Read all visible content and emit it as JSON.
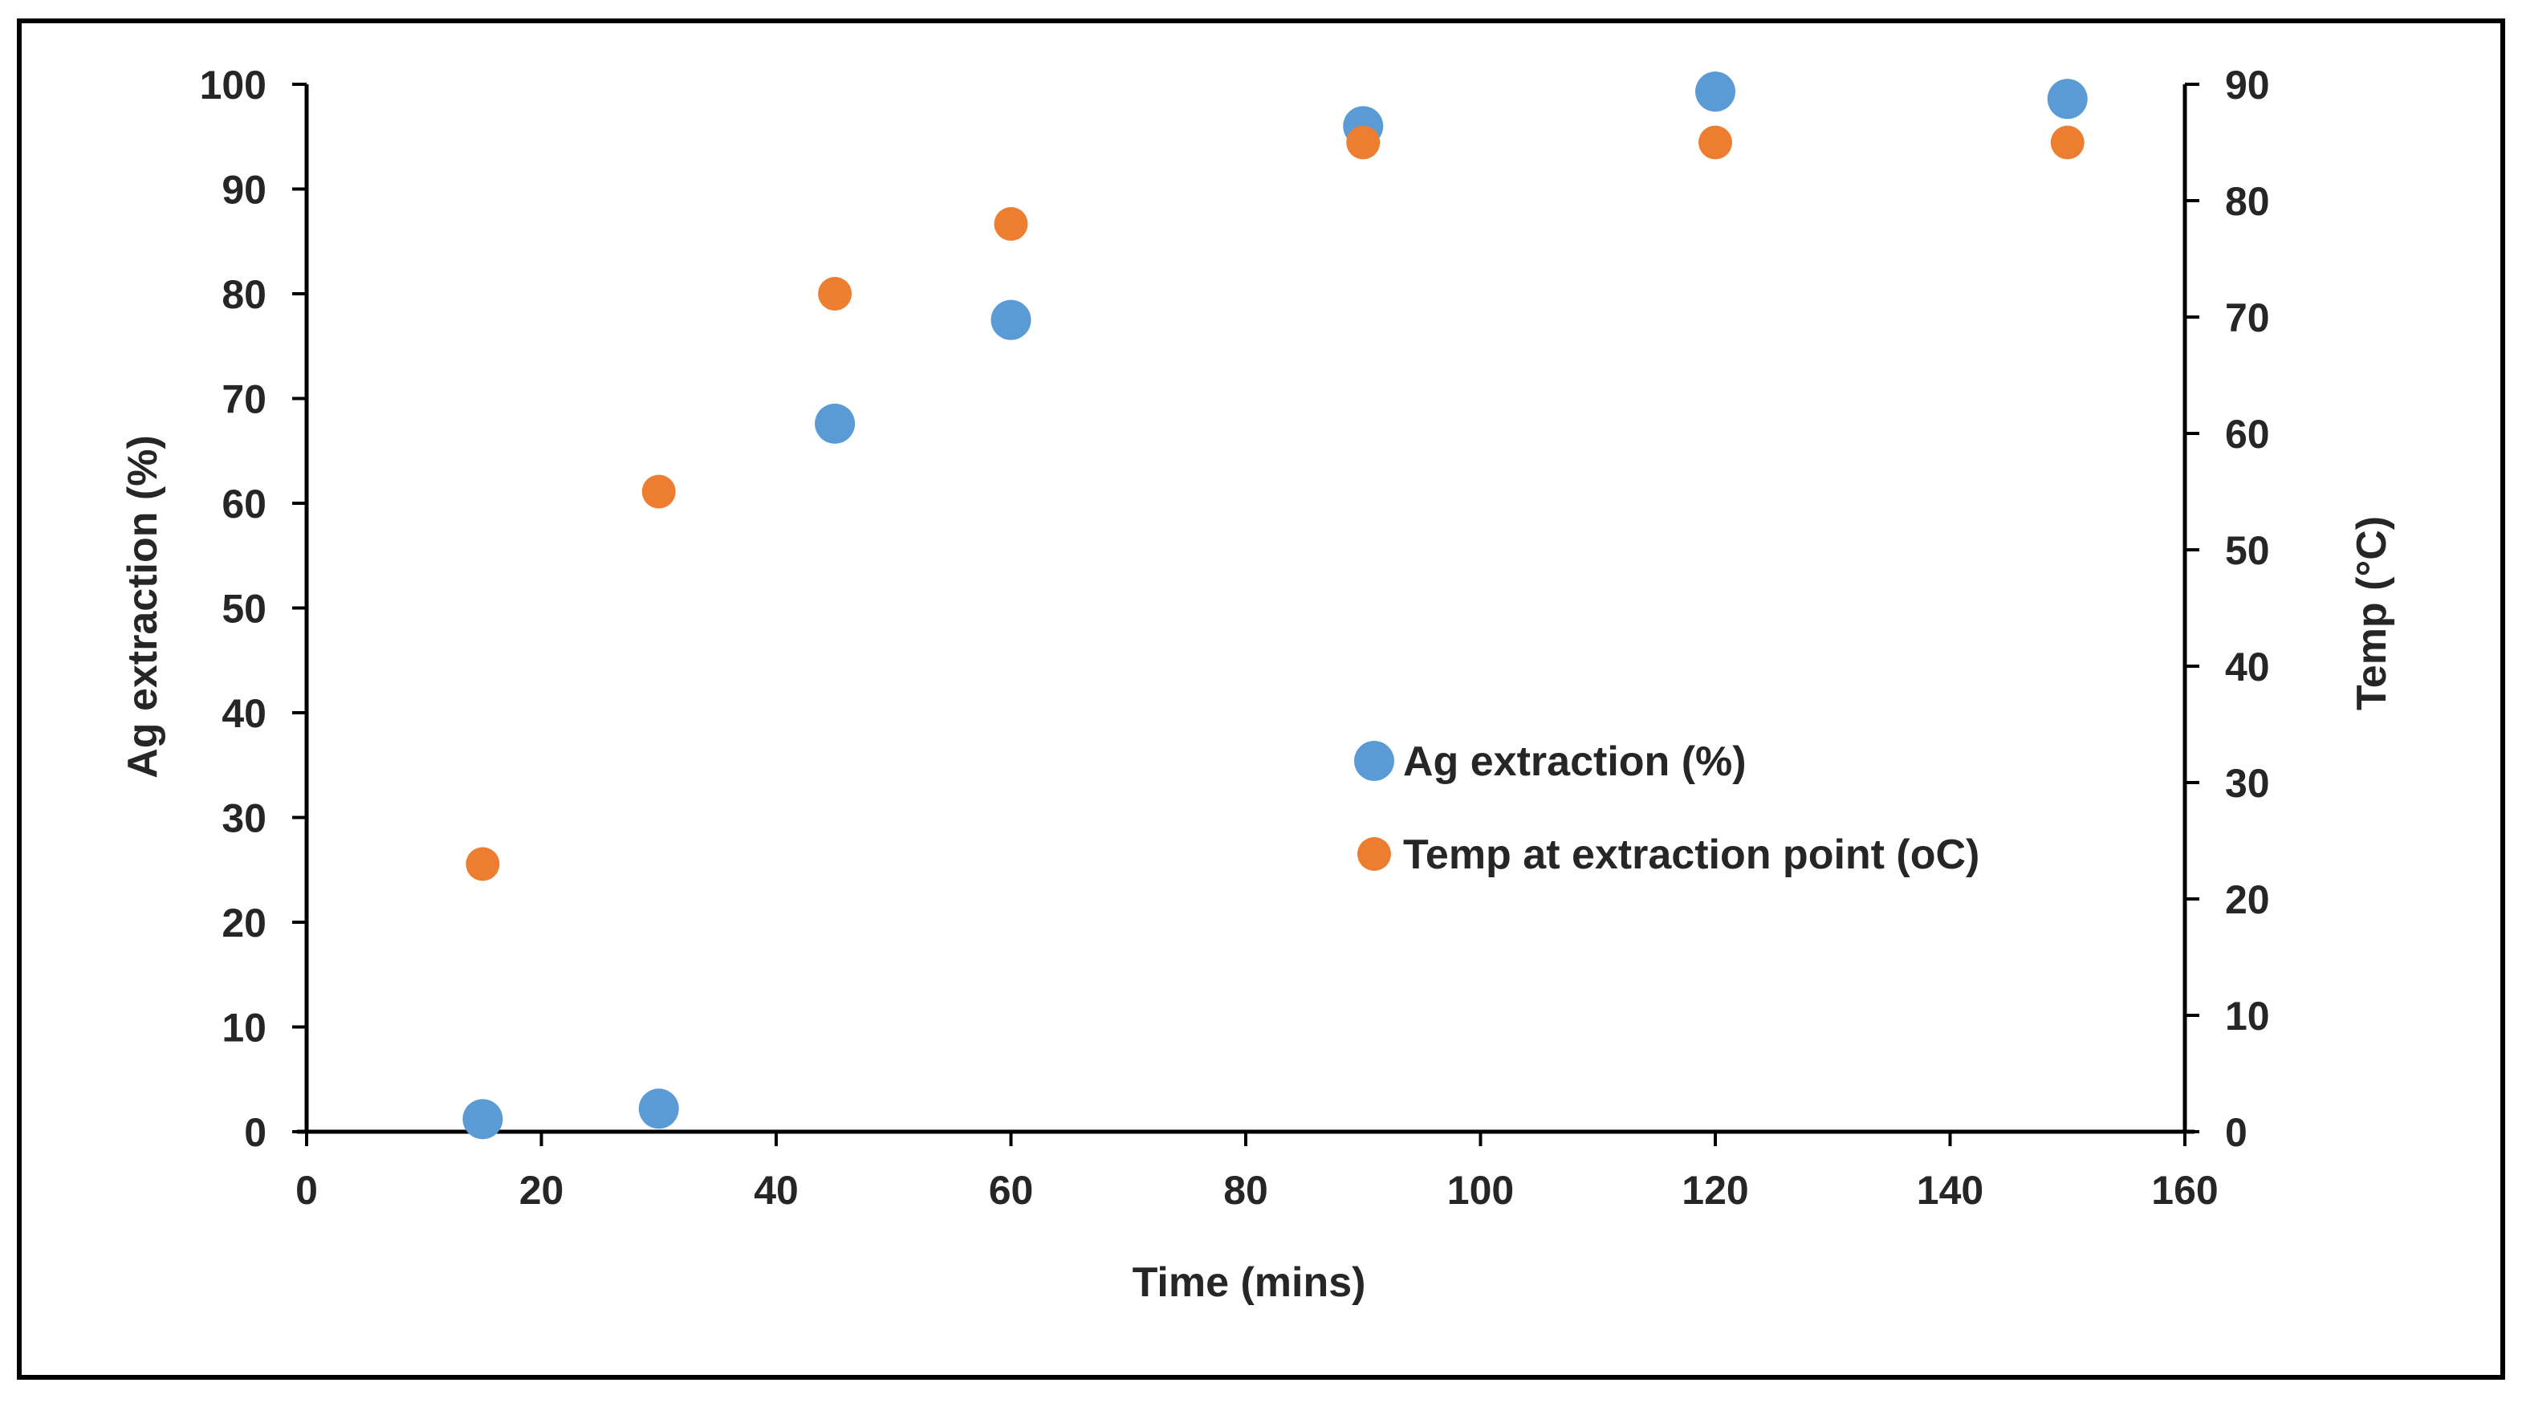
{
  "chart_data": {
    "type": "scatter",
    "title": "",
    "xlabel": "Time (mins)",
    "ylabel": "Ag extraction (%)",
    "y2label": "Temp (°C)",
    "xlim": [
      0,
      160
    ],
    "ylim": [
      0,
      100
    ],
    "y2lim": [
      0,
      90
    ],
    "x_ticks": [
      "0",
      "20",
      "40",
      "60",
      "80",
      "100",
      "120",
      "140",
      "160"
    ],
    "y_ticks": [
      "0",
      "10",
      "20",
      "30",
      "40",
      "50",
      "60",
      "70",
      "80",
      "90",
      "100"
    ],
    "y2_ticks": [
      "0",
      "10",
      "20",
      "30",
      "40",
      "50",
      "60",
      "70",
      "80",
      "90"
    ],
    "grid": false,
    "legend_position": "center-right",
    "series": [
      {
        "name": "Ag extraction (%)",
        "axis": "left",
        "color": "#5B9BD5",
        "x": [
          15,
          30,
          45,
          60,
          90,
          120,
          150
        ],
        "y": [
          1.2,
          2.2,
          67.6,
          77.5,
          96.0,
          99.3,
          98.6
        ]
      },
      {
        "name": "Temp at extraction point (oC)",
        "axis": "right",
        "color": "#ED7D31",
        "x": [
          15,
          30,
          45,
          60,
          90,
          120,
          150
        ],
        "y": [
          23,
          55,
          72,
          78,
          85,
          85,
          85
        ]
      }
    ]
  }
}
